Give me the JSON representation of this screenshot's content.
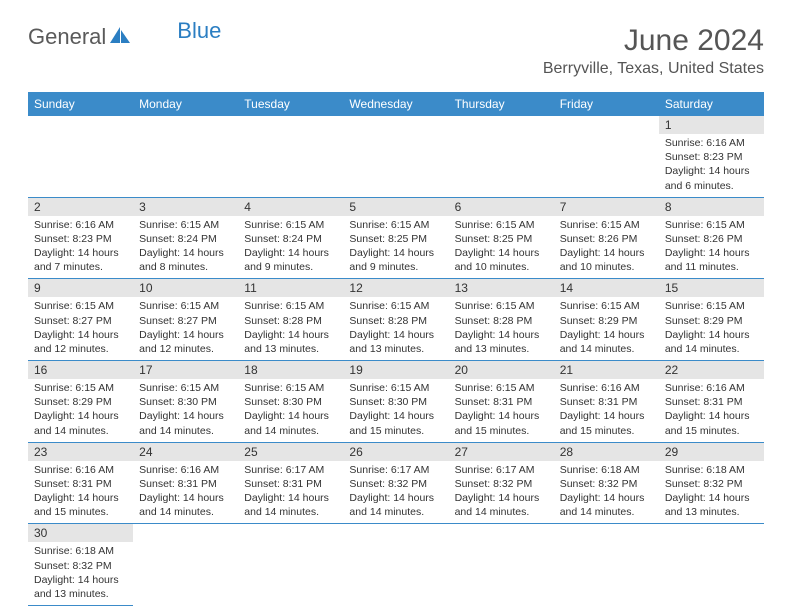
{
  "logo": {
    "word1": "General",
    "word2": "Blue",
    "icon_color": "#2b7ec2"
  },
  "header": {
    "month_title": "June 2024",
    "location": "Berryville, Texas, United States"
  },
  "colors": {
    "header_bg": "#3b8bc9",
    "header_text": "#ffffff",
    "daynum_bg": "#e5e5e5",
    "border": "#3b8bc9",
    "text": "#333333"
  },
  "weekdays": [
    "Sunday",
    "Monday",
    "Tuesday",
    "Wednesday",
    "Thursday",
    "Friday",
    "Saturday"
  ],
  "first_day_index": 6,
  "days": [
    {
      "n": 1,
      "sunrise": "6:16 AM",
      "sunset": "8:23 PM",
      "daylight": "14 hours and 6 minutes."
    },
    {
      "n": 2,
      "sunrise": "6:16 AM",
      "sunset": "8:23 PM",
      "daylight": "14 hours and 7 minutes."
    },
    {
      "n": 3,
      "sunrise": "6:15 AM",
      "sunset": "8:24 PM",
      "daylight": "14 hours and 8 minutes."
    },
    {
      "n": 4,
      "sunrise": "6:15 AM",
      "sunset": "8:24 PM",
      "daylight": "14 hours and 9 minutes."
    },
    {
      "n": 5,
      "sunrise": "6:15 AM",
      "sunset": "8:25 PM",
      "daylight": "14 hours and 9 minutes."
    },
    {
      "n": 6,
      "sunrise": "6:15 AM",
      "sunset": "8:25 PM",
      "daylight": "14 hours and 10 minutes."
    },
    {
      "n": 7,
      "sunrise": "6:15 AM",
      "sunset": "8:26 PM",
      "daylight": "14 hours and 10 minutes."
    },
    {
      "n": 8,
      "sunrise": "6:15 AM",
      "sunset": "8:26 PM",
      "daylight": "14 hours and 11 minutes."
    },
    {
      "n": 9,
      "sunrise": "6:15 AM",
      "sunset": "8:27 PM",
      "daylight": "14 hours and 12 minutes."
    },
    {
      "n": 10,
      "sunrise": "6:15 AM",
      "sunset": "8:27 PM",
      "daylight": "14 hours and 12 minutes."
    },
    {
      "n": 11,
      "sunrise": "6:15 AM",
      "sunset": "8:28 PM",
      "daylight": "14 hours and 13 minutes."
    },
    {
      "n": 12,
      "sunrise": "6:15 AM",
      "sunset": "8:28 PM",
      "daylight": "14 hours and 13 minutes."
    },
    {
      "n": 13,
      "sunrise": "6:15 AM",
      "sunset": "8:28 PM",
      "daylight": "14 hours and 13 minutes."
    },
    {
      "n": 14,
      "sunrise": "6:15 AM",
      "sunset": "8:29 PM",
      "daylight": "14 hours and 14 minutes."
    },
    {
      "n": 15,
      "sunrise": "6:15 AM",
      "sunset": "8:29 PM",
      "daylight": "14 hours and 14 minutes."
    },
    {
      "n": 16,
      "sunrise": "6:15 AM",
      "sunset": "8:29 PM",
      "daylight": "14 hours and 14 minutes."
    },
    {
      "n": 17,
      "sunrise": "6:15 AM",
      "sunset": "8:30 PM",
      "daylight": "14 hours and 14 minutes."
    },
    {
      "n": 18,
      "sunrise": "6:15 AM",
      "sunset": "8:30 PM",
      "daylight": "14 hours and 14 minutes."
    },
    {
      "n": 19,
      "sunrise": "6:15 AM",
      "sunset": "8:30 PM",
      "daylight": "14 hours and 15 minutes."
    },
    {
      "n": 20,
      "sunrise": "6:15 AM",
      "sunset": "8:31 PM",
      "daylight": "14 hours and 15 minutes."
    },
    {
      "n": 21,
      "sunrise": "6:16 AM",
      "sunset": "8:31 PM",
      "daylight": "14 hours and 15 minutes."
    },
    {
      "n": 22,
      "sunrise": "6:16 AM",
      "sunset": "8:31 PM",
      "daylight": "14 hours and 15 minutes."
    },
    {
      "n": 23,
      "sunrise": "6:16 AM",
      "sunset": "8:31 PM",
      "daylight": "14 hours and 15 minutes."
    },
    {
      "n": 24,
      "sunrise": "6:16 AM",
      "sunset": "8:31 PM",
      "daylight": "14 hours and 14 minutes."
    },
    {
      "n": 25,
      "sunrise": "6:17 AM",
      "sunset": "8:31 PM",
      "daylight": "14 hours and 14 minutes."
    },
    {
      "n": 26,
      "sunrise": "6:17 AM",
      "sunset": "8:32 PM",
      "daylight": "14 hours and 14 minutes."
    },
    {
      "n": 27,
      "sunrise": "6:17 AM",
      "sunset": "8:32 PM",
      "daylight": "14 hours and 14 minutes."
    },
    {
      "n": 28,
      "sunrise": "6:18 AM",
      "sunset": "8:32 PM",
      "daylight": "14 hours and 14 minutes."
    },
    {
      "n": 29,
      "sunrise": "6:18 AM",
      "sunset": "8:32 PM",
      "daylight": "14 hours and 13 minutes."
    },
    {
      "n": 30,
      "sunrise": "6:18 AM",
      "sunset": "8:32 PM",
      "daylight": "14 hours and 13 minutes."
    }
  ],
  "labels": {
    "sunrise_prefix": "Sunrise: ",
    "sunset_prefix": "Sunset: ",
    "daylight_prefix": "Daylight: "
  }
}
